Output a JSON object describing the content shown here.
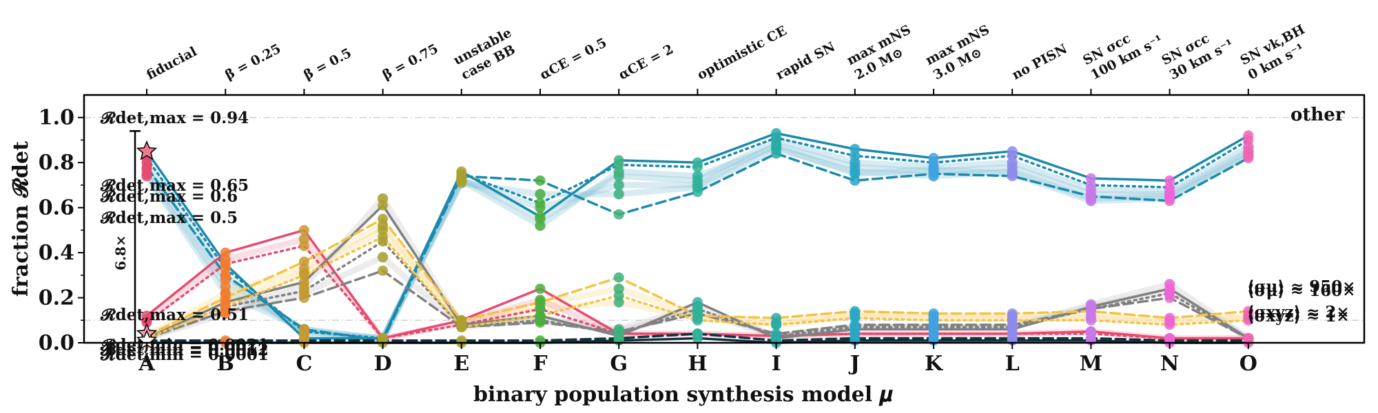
{
  "chart_data": {
    "type": "line",
    "xlabel": "binary population synthesis model 𝝁",
    "ylabel": "fraction 𝓡det",
    "ylim": [
      0,
      1.1
    ],
    "yticks": [
      "0.0",
      "0.2",
      "0.4",
      "0.6",
      "0.8",
      "1.0"
    ],
    "categories": [
      "A",
      "B",
      "C",
      "D",
      "E",
      "F",
      "G",
      "H",
      "I",
      "J",
      "K",
      "L",
      "M",
      "N",
      "O"
    ],
    "model_labels": [
      [
        "fiducial"
      ],
      [
        "β = 0.25"
      ],
      [
        "β = 0.5"
      ],
      [
        "β = 0.75"
      ],
      [
        "unstable",
        "case BB"
      ],
      [
        "αCE = 0.5"
      ],
      [
        "αCE = 2"
      ],
      [
        "optimistic CE"
      ],
      [
        "rapid SN"
      ],
      [
        "max mNS",
        "2.0 M⊙"
      ],
      [
        "max mNS",
        "3.0 M⊙"
      ],
      [
        "no PISN"
      ],
      [
        "SN σcc",
        "100 km s⁻¹"
      ],
      [
        "SN σcc",
        "30 km s⁻¹"
      ],
      [
        "SN vk,BH",
        "0 km s⁻¹"
      ]
    ],
    "grid_lines": [
      1.0,
      0.1
    ],
    "corner_label": "other",
    "annotations": [
      "𝓡det,max = 0.94",
      "𝓡det,max = 0.65",
      "𝓡det,max = 0.6",
      "𝓡det,max = 0.5",
      "𝓡det,max = 0.51",
      "𝓡det,min = 0.0021",
      "𝓡det,min = 0.0012",
      "𝓡det,min = 0.0001",
      "⟨σμ⟩ ≈ 950×",
      "⟨σμ⟩ ≈ 160×",
      "⟨σxyz⟩ ≈ 2×",
      "⟨σxyz⟩ ≈ 1×"
    ],
    "range_bar": {
      "label": "6.8×",
      "from": 0.0,
      "to": 0.94
    },
    "marker_colors": [
      "#e8496e",
      "#f17c2f",
      "#c69a33",
      "#a9a030",
      "#a9a030",
      "#4cae3d",
      "#3fb07e",
      "#2fb19a",
      "#2aaaa4",
      "#2aa6c6",
      "#3fa2e1",
      "#8e8bea",
      "#c978e8",
      "#ef64d6",
      "#f064b4"
    ],
    "series": [
      {
        "name": "",
        "group": "blue",
        "color": "#1a8aad",
        "dash": "solid",
        "width": 3.5,
        "values": [
          0.85,
          0.35,
          0.02,
          0.02,
          0.76,
          0.56,
          0.81,
          0.8,
          0.93,
          0.86,
          0.82,
          0.85,
          0.73,
          0.72,
          0.92
        ]
      },
      {
        "name": "",
        "group": "blue",
        "color": "#1a8aad",
        "dash": "dot",
        "width": 3.5,
        "values": [
          0.82,
          0.33,
          0.05,
          0.02,
          0.75,
          0.62,
          0.79,
          0.78,
          0.91,
          0.83,
          0.8,
          0.83,
          0.7,
          0.69,
          0.9
        ]
      },
      {
        "name": "",
        "group": "blue",
        "color": "#1a8aad",
        "dash": "dash",
        "width": 3.5,
        "values": [
          0.78,
          0.3,
          0.06,
          0.01,
          0.74,
          0.72,
          0.57,
          0.67,
          0.84,
          0.72,
          0.75,
          0.74,
          0.65,
          0.63,
          0.82
        ]
      },
      {
        "name": "",
        "group": "red",
        "color": "#e8496e",
        "dash": "solid",
        "width": 3.5,
        "values": [
          0.12,
          0.4,
          0.5,
          0.02,
          0.1,
          0.24,
          0.04,
          0.04,
          0.03,
          0.04,
          0.04,
          0.04,
          0.05,
          0.02,
          0.02
        ]
      },
      {
        "name": "",
        "group": "red",
        "color": "#e8496e",
        "dash": "dot",
        "width": 3.5,
        "values": [
          0.09,
          0.35,
          0.43,
          0.02,
          0.08,
          0.15,
          0.04,
          0.04,
          0.03,
          0.04,
          0.04,
          0.04,
          0.04,
          0.02,
          0.02
        ]
      },
      {
        "name": "",
        "group": "gray",
        "color": "#808080",
        "dash": "solid",
        "width": 3.5,
        "values": [
          0.02,
          0.18,
          0.27,
          0.61,
          0.08,
          0.12,
          0.03,
          0.18,
          0.02,
          0.06,
          0.06,
          0.06,
          0.16,
          0.24,
          0.02
        ]
      },
      {
        "name": "",
        "group": "gray",
        "color": "#808080",
        "dash": "dot",
        "width": 3.5,
        "values": [
          0.02,
          0.16,
          0.23,
          0.45,
          0.07,
          0.1,
          0.04,
          0.15,
          0.03,
          0.07,
          0.07,
          0.07,
          0.15,
          0.22,
          0.02
        ]
      },
      {
        "name": "",
        "group": "gray",
        "color": "#808080",
        "dash": "dash",
        "width": 3.5,
        "values": [
          0.02,
          0.14,
          0.2,
          0.32,
          0.07,
          0.09,
          0.05,
          0.13,
          0.04,
          0.08,
          0.08,
          0.08,
          0.15,
          0.2,
          0.02
        ]
      },
      {
        "name": "",
        "group": "yellow",
        "color": "#f5c242",
        "dash": "dash",
        "width": 3.5,
        "values": [
          0.03,
          0.2,
          0.36,
          0.55,
          0.1,
          0.18,
          0.29,
          0.12,
          0.11,
          0.14,
          0.13,
          0.13,
          0.14,
          0.11,
          0.14
        ]
      },
      {
        "name": "",
        "group": "yellow",
        "color": "#f5c242",
        "dash": "dot",
        "width": 3.5,
        "values": [
          0.02,
          0.16,
          0.3,
          0.47,
          0.07,
          0.12,
          0.21,
          0.1,
          0.08,
          0.11,
          0.1,
          0.1,
          0.1,
          0.08,
          0.1
        ]
      },
      {
        "name": "",
        "group": "dark",
        "color": "#12313c",
        "dash": "dash",
        "width": 3.5,
        "values": [
          0.01,
          0.01,
          0.01,
          0.01,
          0.01,
          0.01,
          0.02,
          0.04,
          0.01,
          0.02,
          0.02,
          0.02,
          0.02,
          0.01,
          0.01
        ]
      },
      {
        "name": "",
        "group": "dark",
        "color": "#12313c",
        "dash": "solid",
        "width": 3.5,
        "values": [
          0.0,
          0.0,
          0.0,
          0.0,
          0.0,
          0.0,
          0.01,
          0.02,
          0.0,
          0.01,
          0.01,
          0.01,
          0.01,
          0.0,
          0.0
        ]
      }
    ],
    "faint_series": [
      {
        "group": "blue",
        "color": "#8fc6db",
        "values": [
          0.8,
          0.3,
          0.04,
          0.02,
          0.73,
          0.55,
          0.74,
          0.72,
          0.9,
          0.8,
          0.78,
          0.8,
          0.68,
          0.67,
          0.87
        ]
      },
      {
        "group": "blue",
        "color": "#8fc6db",
        "values": [
          0.77,
          0.28,
          0.05,
          0.02,
          0.72,
          0.6,
          0.7,
          0.7,
          0.88,
          0.78,
          0.76,
          0.78,
          0.66,
          0.66,
          0.85
        ]
      },
      {
        "group": "blue",
        "color": "#8fc6db",
        "values": [
          0.75,
          0.25,
          0.06,
          0.02,
          0.71,
          0.66,
          0.66,
          0.69,
          0.86,
          0.76,
          0.74,
          0.76,
          0.64,
          0.65,
          0.83
        ]
      },
      {
        "group": "blue",
        "color": "#8fc6db",
        "values": [
          0.74,
          0.22,
          0.06,
          0.01,
          0.72,
          0.52,
          0.76,
          0.74,
          0.87,
          0.75,
          0.77,
          0.75,
          0.63,
          0.64,
          0.84
        ]
      },
      {
        "group": "yellow",
        "color": "#f8dc96",
        "values": [
          0.03,
          0.22,
          0.33,
          0.52,
          0.09,
          0.17,
          0.24,
          0.12,
          0.09,
          0.13,
          0.12,
          0.12,
          0.12,
          0.1,
          0.12
        ]
      },
      {
        "group": "yellow",
        "color": "#f8dc96",
        "values": [
          0.03,
          0.18,
          0.31,
          0.5,
          0.08,
          0.15,
          0.18,
          0.11,
          0.08,
          0.12,
          0.11,
          0.11,
          0.11,
          0.09,
          0.11
        ]
      },
      {
        "group": "gray",
        "color": "#c8c8c8",
        "values": [
          0.02,
          0.15,
          0.25,
          0.64,
          0.08,
          0.11,
          0.06,
          0.16,
          0.03,
          0.07,
          0.07,
          0.07,
          0.17,
          0.26,
          0.02
        ]
      },
      {
        "group": "gray",
        "color": "#c8c8c8",
        "values": [
          0.02,
          0.13,
          0.22,
          0.38,
          0.07,
          0.1,
          0.05,
          0.14,
          0.03,
          0.07,
          0.07,
          0.07,
          0.16,
          0.23,
          0.02
        ]
      },
      {
        "group": "red",
        "color": "#f3a1b4",
        "values": [
          0.1,
          0.37,
          0.46,
          0.02,
          0.09,
          0.19,
          0.04,
          0.04,
          0.03,
          0.04,
          0.04,
          0.04,
          0.05,
          0.02,
          0.02
        ]
      }
    ],
    "stars": [
      {
        "category": "A",
        "value": 0.85,
        "color": "#f07a8f"
      },
      {
        "category": "A",
        "value": 0.04,
        "color": "#f3a1b4"
      },
      {
        "category": "A",
        "value": 0.01,
        "color": "#ffffff"
      }
    ]
  }
}
